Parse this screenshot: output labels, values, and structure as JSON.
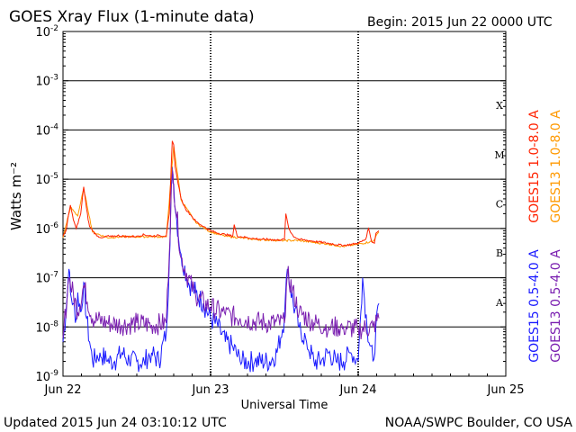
{
  "header": {
    "title": "GOES Xray Flux (1-minute data)",
    "begin": "Begin:  2015 Jun 22 0000 UTC"
  },
  "footer": {
    "updated": "Updated 2015 Jun 24 03:10:12 UTC",
    "credit": "NOAA/SWPC Boulder, CO USA"
  },
  "colors": {
    "goes15_long": "#ff2200",
    "goes13_long": "#ff9900",
    "goes15_short": "#1b1bff",
    "goes13_short": "#7a1fb0",
    "axes": "#000000"
  },
  "chart_data": {
    "type": "line",
    "title": "GOES Xray Flux (1-minute data)",
    "xlabel": "Universal Time",
    "ylabel": "Watts m⁻²",
    "x_unit": "days since 2015 Jun 22 0000 UTC",
    "xlim": [
      0,
      3
    ],
    "x_ticks": [
      {
        "x": 0,
        "label": "Jun 22"
      },
      {
        "x": 1,
        "label": "Jun 23"
      },
      {
        "x": 2,
        "label": "Jun 24"
      },
      {
        "x": 3,
        "label": "Jun 25"
      }
    ],
    "y_scale": "log",
    "ylim": [
      1e-09,
      0.01
    ],
    "y_ticks": [
      {
        "value": 0.01,
        "base": "10",
        "exp": "-2"
      },
      {
        "value": 0.001,
        "base": "10",
        "exp": "-3"
      },
      {
        "value": 0.0001,
        "base": "10",
        "exp": "-4"
      },
      {
        "value": 1e-05,
        "base": "10",
        "exp": "-5"
      },
      {
        "value": 1e-06,
        "base": "10",
        "exp": "-6"
      },
      {
        "value": 1e-07,
        "base": "10",
        "exp": "-7"
      },
      {
        "value": 1e-08,
        "base": "10",
        "exp": "-8"
      },
      {
        "value": 1e-09,
        "base": "10",
        "exp": "-9"
      }
    ],
    "grid_y_decades": [
      0.001,
      0.0001,
      1e-05,
      1e-06,
      1e-07,
      1e-08
    ],
    "flare_classes": [
      {
        "label": "X",
        "value": 0.000316
      },
      {
        "label": "M",
        "value": 3.16e-05
      },
      {
        "label": "C",
        "value": 3.16e-06
      },
      {
        "label": "B",
        "value": 3.16e-07
      },
      {
        "label": "A",
        "value": 3.16e-08
      }
    ],
    "series": [
      {
        "name": "GOES15 1.0-8.0 A",
        "color": "#ff2200",
        "x": [
          0,
          0.02,
          0.05,
          0.07,
          0.09,
          0.12,
          0.14,
          0.16,
          0.17,
          0.18,
          0.2,
          0.23,
          0.27,
          0.3,
          0.33,
          0.37,
          0.4,
          0.45,
          0.5,
          0.55,
          0.6,
          0.65,
          0.7,
          0.72,
          0.73,
          0.74,
          0.75,
          0.76,
          0.78,
          0.8,
          0.83,
          0.87,
          0.9,
          0.95,
          1.0,
          1.05,
          1.1,
          1.15,
          1.16,
          1.18,
          1.25,
          1.3,
          1.35,
          1.4,
          1.45,
          1.5,
          1.51,
          1.53,
          1.56,
          1.6,
          1.7,
          1.8,
          1.9,
          2.0,
          2.05,
          2.07,
          2.09,
          2.11,
          2.12,
          2.14
        ],
        "y": [
          7e-07,
          9e-07,
          3e-06,
          1.5e-06,
          1e-06,
          2e-06,
          7e-06,
          2.5e-06,
          1.5e-06,
          1.1e-06,
          9e-07,
          7e-07,
          6.5e-07,
          7e-07,
          6.8e-07,
          7.2e-07,
          7e-07,
          6.8e-07,
          7e-07,
          7.5e-07,
          7e-07,
          7.2e-07,
          7e-07,
          2e-06,
          1e-05,
          6e-05,
          5e-05,
          1.8e-05,
          8e-06,
          4e-06,
          2.5e-06,
          1.8e-06,
          1.4e-06,
          1.1e-06,
          9e-07,
          8e-07,
          7.5e-07,
          7e-07,
          1.2e-06,
          7e-07,
          6.5e-07,
          6.2e-07,
          6e-07,
          6e-07,
          5.8e-07,
          6e-07,
          2e-06,
          1e-06,
          7e-07,
          6e-07,
          5.5e-07,
          5e-07,
          4.5e-07,
          5e-07,
          6e-07,
          1e-06,
          5.5e-07,
          5e-07,
          8e-07,
          9e-07
        ]
      },
      {
        "name": "GOES13 1.0-8.0 A",
        "color": "#ff9900",
        "x": [
          0,
          0.05,
          0.1,
          0.14,
          0.2,
          0.3,
          0.4,
          0.5,
          0.6,
          0.7,
          0.75,
          0.8,
          0.9,
          1.0,
          1.1,
          1.2,
          1.3,
          1.4,
          1.5,
          1.6,
          1.7,
          1.8,
          1.9,
          2.0,
          2.1,
          2.14
        ],
        "y": [
          6.5e-07,
          2.7e-06,
          1.8e-06,
          6.5e-06,
          8.5e-07,
          6.5e-07,
          6.8e-07,
          6.8e-07,
          6.8e-07,
          6.8e-07,
          4.8e-05,
          3.8e-06,
          1.3e-06,
          8.5e-07,
          7e-07,
          6.5e-07,
          6e-07,
          5.8e-07,
          5.7e-07,
          5.7e-07,
          5.2e-07,
          4.8e-07,
          4.3e-07,
          4.8e-07,
          5.5e-07,
          8.5e-07
        ]
      },
      {
        "name": "GOES15 0.5-4.0 A",
        "color": "#1b1bff",
        "x": [
          0,
          0.02,
          0.04,
          0.05,
          0.07,
          0.09,
          0.1,
          0.12,
          0.14,
          0.16,
          0.18,
          0.2,
          0.25,
          0.3,
          0.35,
          0.4,
          0.45,
          0.5,
          0.55,
          0.6,
          0.65,
          0.7,
          0.72,
          0.73,
          0.74,
          0.75,
          0.77,
          0.8,
          0.85,
          0.9,
          0.95,
          1.0,
          1.05,
          1.1,
          1.15,
          1.2,
          1.3,
          1.4,
          1.45,
          1.5,
          1.52,
          1.56,
          1.6,
          1.65,
          1.7,
          1.75,
          1.8,
          1.85,
          1.9,
          1.95,
          2.0,
          2.03,
          2.06,
          2.1,
          2.14
        ],
        "y": [
          5e-09,
          2e-08,
          1.5e-07,
          5e-08,
          3e-08,
          1.5e-08,
          5e-08,
          2e-08,
          8e-08,
          1.5e-08,
          5e-09,
          2e-09,
          3e-09,
          2e-09,
          2e-09,
          3e-09,
          2e-09,
          2e-09,
          2e-09,
          3e-09,
          2e-09,
          8e-09,
          2e-07,
          3e-06,
          1.8e-05,
          8e-06,
          1.5e-06,
          3e-07,
          8e-08,
          5e-08,
          3e-08,
          1.5e-08,
          1e-08,
          5e-09,
          4e-09,
          2e-09,
          2e-09,
          2e-09,
          3e-09,
          1.5e-08,
          1.5e-07,
          3e-08,
          1e-08,
          5e-09,
          2e-09,
          2e-09,
          3e-09,
          2e-09,
          2e-09,
          3e-09,
          2e-09,
          1e-07,
          1e-08,
          2e-09,
          3e-08
        ]
      },
      {
        "name": "GOES13 0.5-4.0 A",
        "color": "#7a1fb0",
        "x": [
          0,
          0.04,
          0.1,
          0.14,
          0.2,
          0.3,
          0.4,
          0.5,
          0.6,
          0.7,
          0.74,
          0.8,
          0.9,
          1.0,
          1.1,
          1.2,
          1.3,
          1.4,
          1.5,
          1.52,
          1.6,
          1.7,
          1.8,
          1.9,
          2.0,
          2.1,
          2.14
        ],
        "y": [
          6e-09,
          1e-07,
          2e-08,
          7e-08,
          1.5e-08,
          1.2e-08,
          1.1e-08,
          1.2e-08,
          1.1e-08,
          1.2e-08,
          1.6e-05,
          2.5e-07,
          4e-08,
          2.5e-08,
          1.8e-08,
          1.5e-08,
          1.3e-08,
          1.2e-08,
          1.2e-08,
          1.2e-07,
          2e-08,
          1.2e-08,
          1e-08,
          1e-08,
          9e-09,
          1e-08,
          1.5e-08
        ]
      }
    ],
    "legend_placement": "right-vertical",
    "grid": true
  }
}
